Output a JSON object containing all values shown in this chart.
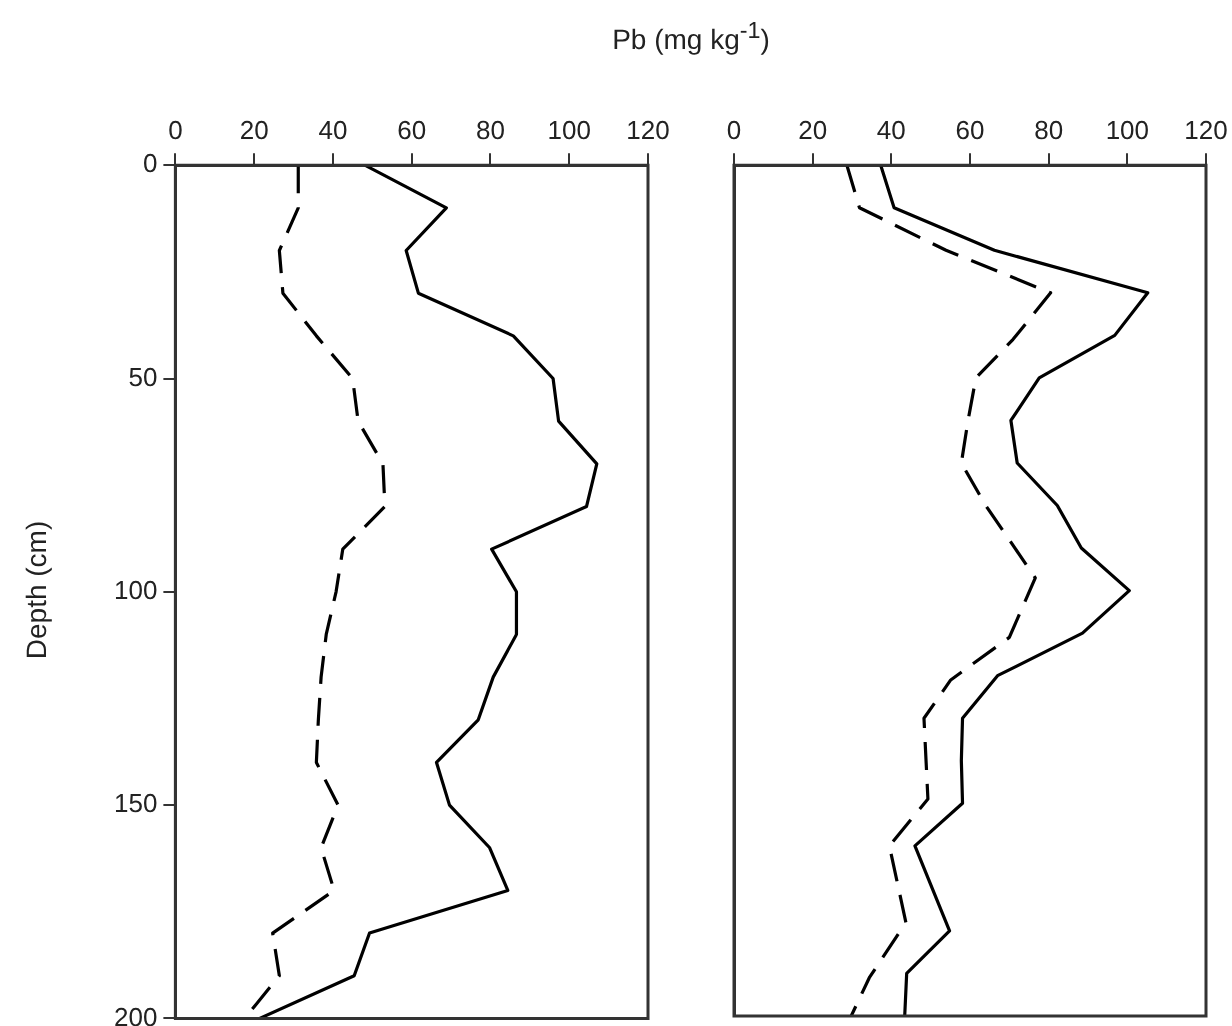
{
  "chart_data": [
    {
      "type": "line",
      "xlabel": "Pb (mg kg$^{-1}$)",
      "ylabel": "Depth (cm)",
      "xlim": [
        0,
        120
      ],
      "xticks": [
        0,
        20,
        40,
        60,
        80,
        100,
        120
      ],
      "ylim": [
        200,
        0
      ],
      "yticks": [
        0,
        50,
        100,
        150,
        200
      ],
      "grid": false,
      "legend": false,
      "marker": "none",
      "series": [
        {
          "color": "#000000",
          "line_style": "solid",
          "x": [
            48.1,
            68.8,
            58.6,
            61.7,
            85.8,
            95.9,
            97.3,
            107,
            104.4,
            80.3,
            86.6,
            86.6,
            80.7,
            76.9,
            66.3,
            69.6,
            79.8,
            84.4,
            49.3,
            45.4,
            21.4
          ],
          "values": [
            0,
            10,
            20,
            30,
            40,
            50,
            60,
            70,
            80,
            90,
            100,
            110,
            120,
            130,
            140,
            150,
            160,
            170,
            180,
            190,
            200
          ]
        },
        {
          "color": "#000000",
          "line_style": "dashed",
          "x": [
            31.2,
            31.2,
            26.4,
            27.3,
            35.8,
            45,
            46.4,
            52.7,
            53.2,
            42.5,
            40.8,
            38.3,
            37,
            36.3,
            35.8,
            41.3,
            37,
            40.3,
            24.7,
            26.4,
            17.6
          ],
          "values": [
            0,
            10,
            20,
            30,
            40,
            50,
            60,
            70,
            80,
            90,
            100,
            110,
            120,
            130,
            140,
            150,
            160,
            170,
            180,
            190,
            200
          ]
        }
      ]
    },
    {
      "type": "line",
      "xlim": [
        0,
        120
      ],
      "xticks": [
        0,
        20,
        40,
        60,
        80,
        100,
        120
      ],
      "ylim": [
        200,
        0
      ],
      "yticks": [
        0,
        50,
        100,
        150,
        200
      ],
      "tick_labels": "x",
      "grid": false,
      "legend": false,
      "marker": "none",
      "series": [
        {
          "color": "#000000",
          "line_style": "solid",
          "x": [
            37.3,
            40.7,
            66.2,
            105.2,
            96.8,
            77.6,
            70.4,
            72,
            82.2,
            88.3,
            100.5,
            88.6,
            67,
            58.1,
            57.8,
            58.1,
            46,
            54.8,
            43.9,
            43.4
          ],
          "values": [
            0,
            10,
            20,
            30,
            40,
            50,
            60,
            70,
            80,
            90,
            100,
            110,
            120,
            130,
            140,
            150,
            160,
            180,
            190,
            200
          ]
        },
        {
          "color": "#000000",
          "line_style": "dashed",
          "x": [
            28.7,
            31.9,
            53.9,
            80.5,
            70.9,
            61.5,
            59.5,
            57.8,
            64,
            76.6,
            70,
            55.1,
            48.3,
            49.3,
            39.5,
            43.7,
            34.4,
            29.8
          ],
          "values": [
            0,
            10,
            20,
            30,
            41,
            50,
            60,
            70,
            80,
            97,
            111,
            121,
            130,
            149,
            160,
            178,
            191,
            200
          ]
        }
      ]
    }
  ]
}
